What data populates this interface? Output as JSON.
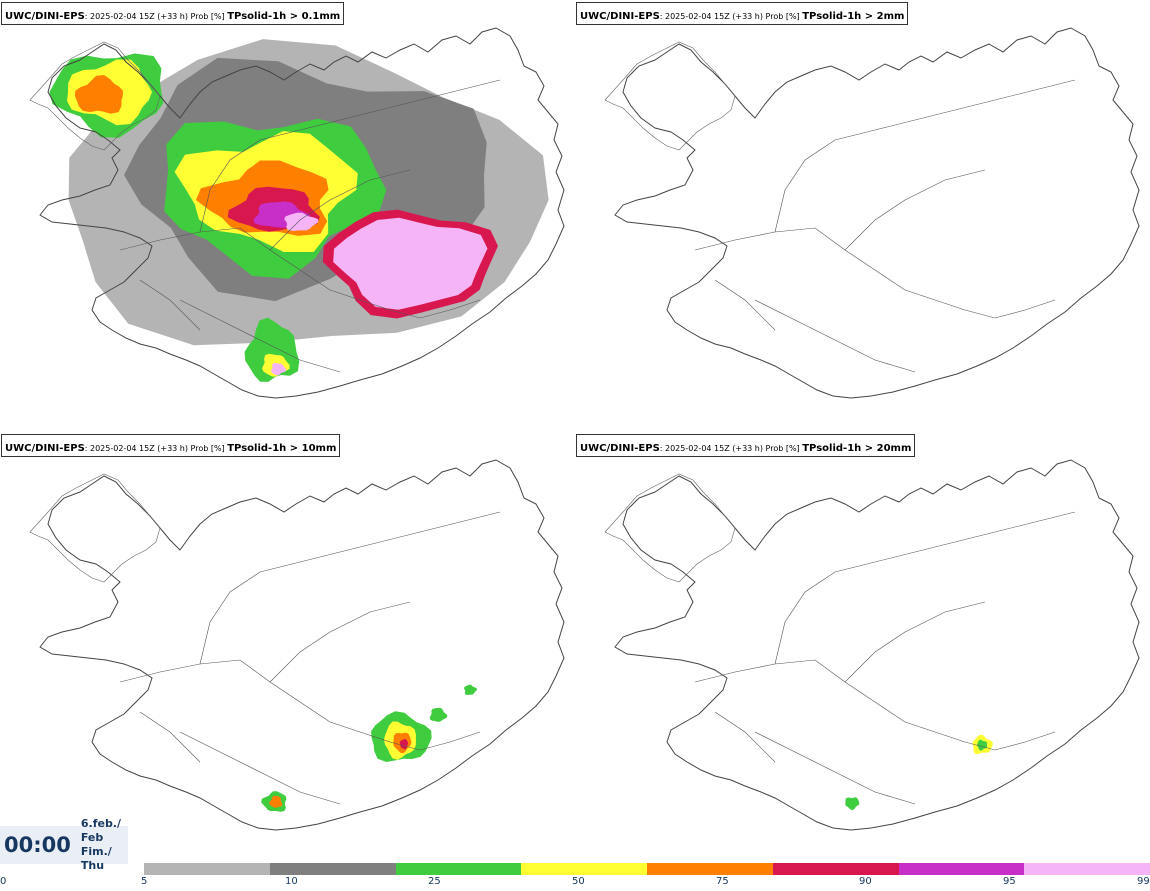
{
  "panels": [
    {
      "model": "UWC/DINI-EPS",
      "info": ": 2025-02-04 15Z (+33 h) Prob [%] ",
      "variable": "TPsolid-1h > 0.1mm"
    },
    {
      "model": "UWC/DINI-EPS",
      "info": ": 2025-02-04 15Z (+33 h) Prob [%] ",
      "variable": "TPsolid-1h > 2mm"
    },
    {
      "model": "UWC/DINI-EPS",
      "info": ": 2025-02-04 15Z (+33 h) Prob [%] ",
      "variable": "TPsolid-1h > 10mm"
    },
    {
      "model": "UWC/DINI-EPS",
      "info": ": 2025-02-04 15Z (+33 h) Prob [%] ",
      "variable": "TPsolid-1h > 20mm"
    }
  ],
  "time": {
    "clock": "00:00",
    "date_line1": "6.feb./ Feb",
    "date_line2": "Fim./ Thu"
  },
  "colorbar": {
    "colors": [
      "#b4b4b4",
      "#7f7f7f",
      "#3fcc3f",
      "#ffff33",
      "#ff7f00",
      "#d8174f",
      "#c82ec8",
      "#f5b4f5"
    ],
    "ticks": [
      "0",
      "5",
      "10",
      "25",
      "50",
      "75",
      "90",
      "95",
      "99"
    ]
  }
}
